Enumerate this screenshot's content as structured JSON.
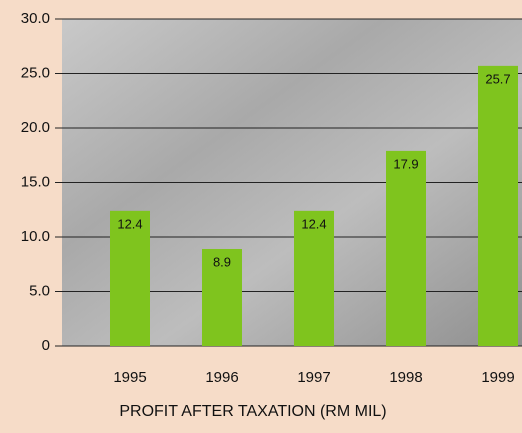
{
  "chart_data": {
    "type": "bar",
    "x_label": "PROFIT AFTER TAXATION (RM MIL)",
    "categories": [
      "1995",
      "1996",
      "1997",
      "1998",
      "1999"
    ],
    "values": [
      12.4,
      8.9,
      12.4,
      17.9,
      25.7
    ],
    "color": "#7fc41e",
    "ylim": [
      0,
      30
    ],
    "yticks": [
      0,
      {
        "value": 5,
        "label": "5.0"
      },
      {
        "value": 10,
        "label": "10.0"
      },
      {
        "value": 15,
        "label": "15.0"
      },
      {
        "value": 20,
        "label": "20.0"
      },
      {
        "value": 25,
        "label": "25.0"
      },
      {
        "value": 30,
        "label": "30.0"
      }
    ],
    "grid": true
  }
}
